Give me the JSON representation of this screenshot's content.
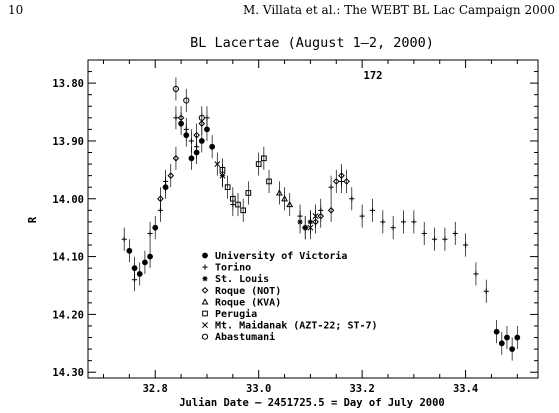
{
  "header": {
    "page_number": "10",
    "running_title": "M. Villata et al.: The WEBT BL Lac Campaign 2000"
  },
  "chart_data": {
    "type": "scatter",
    "title": "BL Lacertae    (August 1–2, 2000)",
    "annotation": "172",
    "xlabel": "Julian Date – 2451725.5 = Day of July 2000",
    "ylabel": "R",
    "xlim": [
      32.67,
      33.54
    ],
    "ylim": [
      14.31,
      13.76
    ],
    "y_inverted": true,
    "x_ticks": [
      "32.8",
      "33.0",
      "33.2",
      "33.4"
    ],
    "y_ticks": [
      "13.80",
      "13.90",
      "14.00",
      "14.10",
      "14.20",
      "14.30"
    ],
    "legend": {
      "placement": "lower-left",
      "entries": [
        {
          "label": "University of Victoria",
          "symbol": "filled-circle"
        },
        {
          "label": "Torino",
          "symbol": "plus"
        },
        {
          "label": "St. Louis",
          "symbol": "asterisk"
        },
        {
          "label": "Roque (NOT)",
          "symbol": "diamond"
        },
        {
          "label": "Roque (KVA)",
          "symbol": "triangle"
        },
        {
          "label": "Perugia",
          "symbol": "square"
        },
        {
          "label": "Mt. Maidanak (AZT-22; ST-7)",
          "symbol": "cross"
        },
        {
          "label": "Abastumani",
          "symbol": "circle"
        }
      ]
    },
    "series": [
      {
        "symbol": "filled-circle",
        "x": [
          32.75,
          32.76,
          32.77,
          32.78,
          32.79,
          32.8,
          32.82,
          32.85,
          32.86,
          32.87,
          32.88,
          32.89,
          32.9,
          32.91,
          33.46,
          33.47,
          33.48,
          33.49,
          33.5
        ],
        "y": [
          14.09,
          14.12,
          14.13,
          14.11,
          14.1,
          14.05,
          13.98,
          13.87,
          13.89,
          13.93,
          13.92,
          13.9,
          13.88,
          13.91,
          14.23,
          14.25,
          14.24,
          14.26,
          14.24
        ]
      },
      {
        "symbol": "plus",
        "x": [
          32.74,
          32.76,
          32.79,
          32.81,
          32.82,
          32.84,
          32.86,
          32.87,
          32.88,
          32.9,
          32.93,
          32.95,
          33.08,
          33.1,
          33.12,
          33.14,
          33.16,
          33.18,
          33.2,
          33.22,
          33.24,
          33.26,
          33.28,
          33.3,
          33.32,
          33.34,
          33.36,
          33.38,
          33.4,
          33.42,
          33.44
        ],
        "y": [
          14.07,
          14.14,
          14.06,
          14.02,
          13.97,
          13.86,
          13.88,
          13.9,
          13.91,
          13.86,
          13.96,
          14.01,
          14.03,
          14.04,
          14.02,
          13.98,
          13.97,
          14.0,
          14.03,
          14.02,
          14.04,
          14.05,
          14.04,
          14.04,
          14.06,
          14.07,
          14.07,
          14.06,
          14.08,
          14.13,
          14.16
        ]
      },
      {
        "symbol": "asterisk",
        "x": [
          33.08,
          33.09,
          33.1
        ],
        "y": [
          14.04,
          14.05,
          14.04
        ]
      },
      {
        "symbol": "diamond",
        "x": [
          32.81,
          32.83,
          32.84,
          32.85,
          32.88,
          32.89,
          33.09,
          33.11,
          33.12,
          33.14,
          33.15,
          33.16,
          33.17
        ],
        "y": [
          14.0,
          13.96,
          13.93,
          13.86,
          13.89,
          13.87,
          14.05,
          14.04,
          14.03,
          14.02,
          13.97,
          13.96,
          13.97
        ]
      },
      {
        "symbol": "triangle",
        "x": [
          33.04,
          33.05,
          33.06
        ],
        "y": [
          13.99,
          14.0,
          14.01
        ]
      },
      {
        "symbol": "square",
        "x": [
          32.93,
          32.94,
          32.95,
          32.96,
          32.97,
          32.98,
          33.0,
          33.01,
          33.02
        ],
        "y": [
          13.95,
          13.98,
          14.0,
          14.01,
          14.02,
          13.99,
          13.94,
          13.93,
          13.97
        ]
      },
      {
        "symbol": "cross",
        "x": [
          32.92,
          32.93,
          33.1,
          33.11
        ],
        "y": [
          13.94,
          13.96,
          14.05,
          14.03
        ]
      },
      {
        "symbol": "circle",
        "x": [
          32.84,
          32.86,
          32.89
        ],
        "y": [
          13.81,
          13.83,
          13.86
        ]
      }
    ]
  }
}
